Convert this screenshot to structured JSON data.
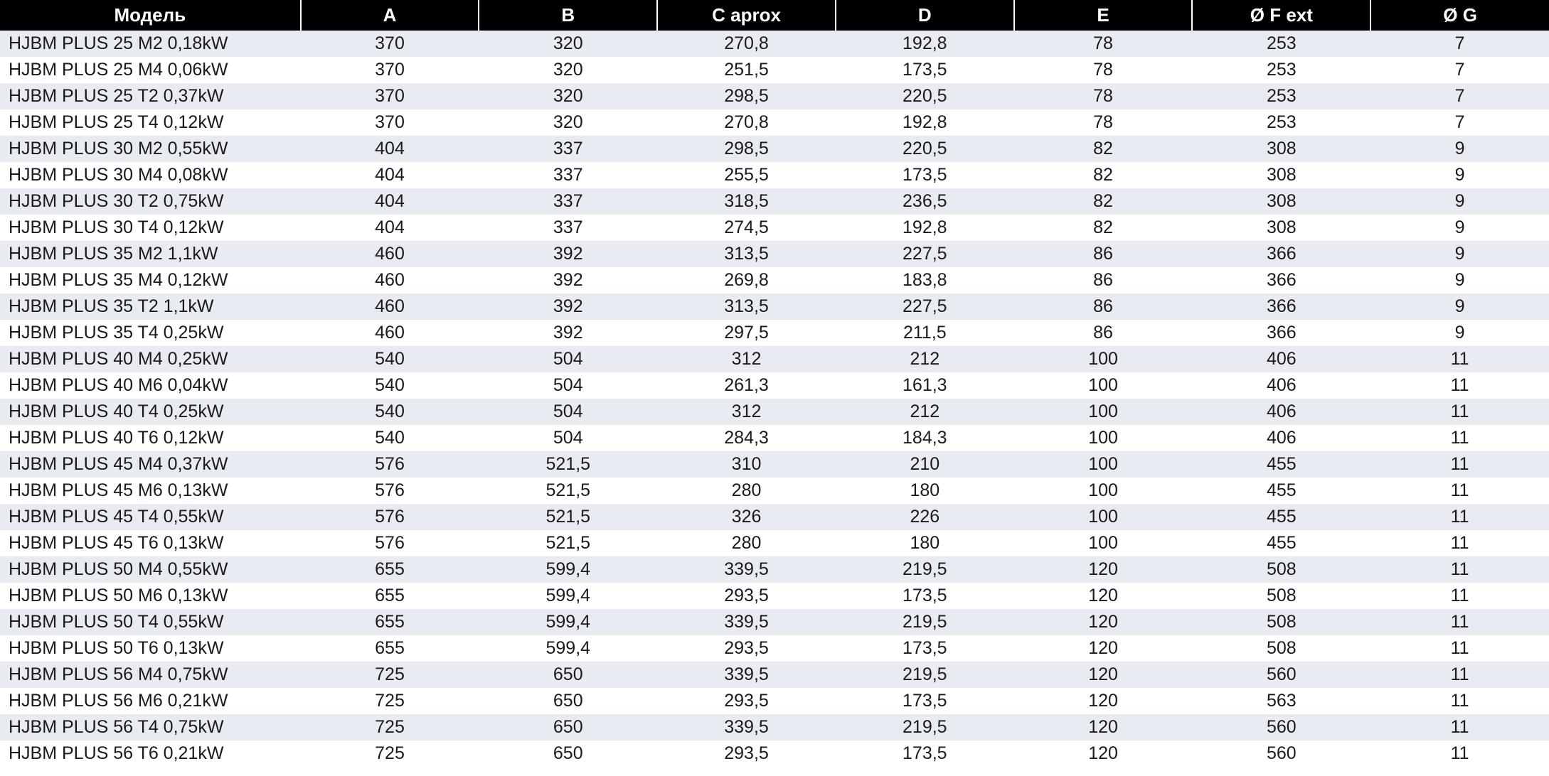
{
  "table": {
    "columns": [
      "Модель",
      "A",
      "B",
      "C  aprox",
      "D",
      "E",
      "Ø F ext",
      "Ø G"
    ],
    "column_widths": [
      "300px",
      "178px",
      "178px",
      "178px",
      "178px",
      "178px",
      "178px",
      "178px"
    ],
    "header_bg": "#000000",
    "header_fg": "#ffffff",
    "header_fontsize": 26,
    "body_fontsize": 25,
    "row_odd_bg": "#e8ecf2",
    "row_even_bg": "#ffffff",
    "text_color": "#1a1a1a",
    "rows": [
      [
        "HJBM PLUS 25 M2 0,18kW",
        "370",
        "320",
        "270,8",
        "192,8",
        "78",
        "253",
        "7"
      ],
      [
        "HJBM PLUS 25 M4 0,06kW",
        "370",
        "320",
        "251,5",
        "173,5",
        "78",
        "253",
        "7"
      ],
      [
        "HJBM PLUS 25 T2 0,37kW",
        "370",
        "320",
        "298,5",
        "220,5",
        "78",
        "253",
        "7"
      ],
      [
        "HJBM PLUS 25 T4 0,12kW",
        "370",
        "320",
        "270,8",
        "192,8",
        "78",
        "253",
        "7"
      ],
      [
        "HJBM PLUS 30 M2 0,55kW",
        "404",
        "337",
        "298,5",
        "220,5",
        "82",
        "308",
        "9"
      ],
      [
        "HJBM PLUS 30 M4 0,08kW",
        "404",
        "337",
        "255,5",
        "173,5",
        "82",
        "308",
        "9"
      ],
      [
        "HJBM PLUS 30 T2 0,75kW",
        "404",
        "337",
        "318,5",
        "236,5",
        "82",
        "308",
        "9"
      ],
      [
        "HJBM PLUS 30 T4 0,12kW",
        "404",
        "337",
        "274,5",
        "192,8",
        "82",
        "308",
        "9"
      ],
      [
        "HJBM PLUS 35 M2 1,1kW",
        "460",
        "392",
        "313,5",
        "227,5",
        "86",
        "366",
        "9"
      ],
      [
        "HJBM PLUS 35 M4 0,12kW",
        "460",
        "392",
        "269,8",
        "183,8",
        "86",
        "366",
        "9"
      ],
      [
        "HJBM PLUS 35 T2 1,1kW",
        "460",
        "392",
        "313,5",
        "227,5",
        "86",
        "366",
        "9"
      ],
      [
        "HJBM PLUS 35 T4 0,25kW",
        "460",
        "392",
        "297,5",
        "211,5",
        "86",
        "366",
        "9"
      ],
      [
        "HJBM PLUS 40 M4 0,25kW",
        "540",
        "504",
        "312",
        "212",
        "100",
        "406",
        "11"
      ],
      [
        "HJBM PLUS 40 M6 0,04kW",
        "540",
        "504",
        "261,3",
        "161,3",
        "100",
        "406",
        "11"
      ],
      [
        "HJBM PLUS 40 T4 0,25kW",
        "540",
        "504",
        "312",
        "212",
        "100",
        "406",
        "11"
      ],
      [
        "HJBM PLUS 40 T6 0,12kW",
        "540",
        "504",
        "284,3",
        "184,3",
        "100",
        "406",
        "11"
      ],
      [
        "HJBM PLUS 45 M4 0,37kW",
        "576",
        "521,5",
        "310",
        "210",
        "100",
        "455",
        "11"
      ],
      [
        "HJBM PLUS 45 M6 0,13kW",
        "576",
        "521,5",
        "280",
        "180",
        "100",
        "455",
        "11"
      ],
      [
        "HJBM PLUS 45 T4 0,55kW",
        "576",
        "521,5",
        "326",
        "226",
        "100",
        "455",
        "11"
      ],
      [
        "HJBM PLUS 45 T6 0,13kW",
        "576",
        "521,5",
        "280",
        "180",
        "100",
        "455",
        "11"
      ],
      [
        "HJBM PLUS 50 M4 0,55kW",
        "655",
        "599,4",
        "339,5",
        "219,5",
        "120",
        "508",
        "11"
      ],
      [
        "HJBM PLUS 50 M6 0,13kW",
        "655",
        "599,4",
        "293,5",
        "173,5",
        "120",
        "508",
        "11"
      ],
      [
        "HJBM PLUS 50 T4 0,55kW",
        "655",
        "599,4",
        "339,5",
        "219,5",
        "120",
        "508",
        "11"
      ],
      [
        "HJBM PLUS 50 T6 0,13kW",
        "655",
        "599,4",
        "293,5",
        "173,5",
        "120",
        "508",
        "11"
      ],
      [
        "HJBM PLUS 56 M4 0,75kW",
        "725",
        "650",
        "339,5",
        "219,5",
        "120",
        "560",
        "11"
      ],
      [
        "HJBM PLUS 56 M6 0,21kW",
        "725",
        "650",
        "293,5",
        "173,5",
        "120",
        "563",
        "11"
      ],
      [
        "HJBM PLUS 56 T4 0,75kW",
        "725",
        "650",
        "339,5",
        "219,5",
        "120",
        "560",
        "11"
      ],
      [
        "HJBM PLUS 56 T6 0,21kW",
        "725",
        "650",
        "293,5",
        "173,5",
        "120",
        "560",
        "11"
      ]
    ]
  }
}
